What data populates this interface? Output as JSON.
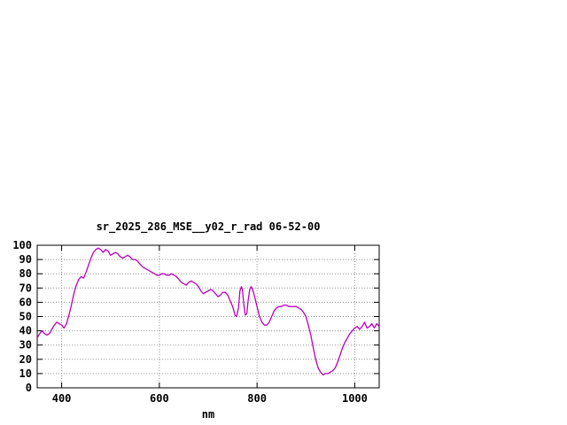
{
  "chart_data": {
    "type": "line",
    "title": "sr_2025_286_MSE__y02_r_rad 06-52-00",
    "xlabel": "nm",
    "ylabel": "",
    "xlim": [
      350,
      1050
    ],
    "ylim": [
      0,
      100
    ],
    "xticks": [
      400,
      600,
      800,
      1000
    ],
    "yticks": [
      0,
      10,
      20,
      30,
      40,
      50,
      60,
      70,
      80,
      90,
      100
    ],
    "grid": true,
    "legend": "none",
    "line_color": "#bb00bb",
    "background_color": "#ffffff",
    "series": [
      {
        "name": "sr_2025_286_MSE__y02_r_rad",
        "points": [
          [
            350,
            35
          ],
          [
            355,
            38
          ],
          [
            360,
            40
          ],
          [
            365,
            38
          ],
          [
            370,
            37
          ],
          [
            375,
            38
          ],
          [
            380,
            41
          ],
          [
            385,
            44
          ],
          [
            390,
            46
          ],
          [
            395,
            45
          ],
          [
            400,
            44
          ],
          [
            405,
            42
          ],
          [
            410,
            45
          ],
          [
            415,
            51
          ],
          [
            420,
            58
          ],
          [
            425,
            66
          ],
          [
            430,
            72
          ],
          [
            435,
            76
          ],
          [
            440,
            78
          ],
          [
            445,
            77
          ],
          [
            450,
            81
          ],
          [
            455,
            86
          ],
          [
            460,
            91
          ],
          [
            465,
            95
          ],
          [
            470,
            97
          ],
          [
            475,
            98
          ],
          [
            480,
            97
          ],
          [
            485,
            95
          ],
          [
            490,
            97
          ],
          [
            495,
            96
          ],
          [
            500,
            93
          ],
          [
            505,
            94
          ],
          [
            510,
            95
          ],
          [
            515,
            94
          ],
          [
            520,
            92
          ],
          [
            525,
            91
          ],
          [
            530,
            92
          ],
          [
            535,
            93
          ],
          [
            540,
            92
          ],
          [
            545,
            90
          ],
          [
            550,
            90
          ],
          [
            555,
            89
          ],
          [
            560,
            87
          ],
          [
            565,
            85
          ],
          [
            570,
            84
          ],
          [
            575,
            83
          ],
          [
            580,
            82
          ],
          [
            585,
            81
          ],
          [
            590,
            80
          ],
          [
            595,
            79
          ],
          [
            600,
            79
          ],
          [
            605,
            80
          ],
          [
            610,
            80
          ],
          [
            615,
            79
          ],
          [
            620,
            79
          ],
          [
            625,
            80
          ],
          [
            630,
            79
          ],
          [
            635,
            78
          ],
          [
            640,
            76
          ],
          [
            645,
            74
          ],
          [
            650,
            73
          ],
          [
            655,
            72
          ],
          [
            660,
            74
          ],
          [
            665,
            75
          ],
          [
            670,
            74
          ],
          [
            675,
            73
          ],
          [
            680,
            71
          ],
          [
            685,
            68
          ],
          [
            690,
            66
          ],
          [
            695,
            67
          ],
          [
            700,
            68
          ],
          [
            705,
            69
          ],
          [
            710,
            68
          ],
          [
            715,
            66
          ],
          [
            720,
            64
          ],
          [
            725,
            65
          ],
          [
            730,
            67
          ],
          [
            735,
            67
          ],
          [
            740,
            65
          ],
          [
            745,
            61
          ],
          [
            750,
            57
          ],
          [
            755,
            51
          ],
          [
            758,
            50
          ],
          [
            762,
            56
          ],
          [
            765,
            68
          ],
          [
            768,
            71
          ],
          [
            770,
            69
          ],
          [
            773,
            58
          ],
          [
            776,
            51
          ],
          [
            779,
            52
          ],
          [
            782,
            62
          ],
          [
            785,
            69
          ],
          [
            788,
            71
          ],
          [
            791,
            69
          ],
          [
            795,
            64
          ],
          [
            800,
            57
          ],
          [
            805,
            50
          ],
          [
            810,
            46
          ],
          [
            815,
            44
          ],
          [
            820,
            44
          ],
          [
            825,
            46
          ],
          [
            830,
            50
          ],
          [
            835,
            54
          ],
          [
            840,
            56
          ],
          [
            845,
            57
          ],
          [
            850,
            57
          ],
          [
            855,
            58
          ],
          [
            860,
            58
          ],
          [
            865,
            57
          ],
          [
            870,
            57
          ],
          [
            875,
            57
          ],
          [
            880,
            57
          ],
          [
            885,
            56
          ],
          [
            890,
            55
          ],
          [
            895,
            53
          ],
          [
            900,
            50
          ],
          [
            905,
            44
          ],
          [
            910,
            37
          ],
          [
            915,
            28
          ],
          [
            920,
            20
          ],
          [
            925,
            14
          ],
          [
            930,
            11
          ],
          [
            935,
            9
          ],
          [
            940,
            10
          ],
          [
            945,
            10
          ],
          [
            950,
            11
          ],
          [
            955,
            12
          ],
          [
            960,
            14
          ],
          [
            965,
            18
          ],
          [
            970,
            23
          ],
          [
            975,
            28
          ],
          [
            980,
            32
          ],
          [
            985,
            35
          ],
          [
            990,
            38
          ],
          [
            995,
            40
          ],
          [
            1000,
            42
          ],
          [
            1005,
            43
          ],
          [
            1010,
            41
          ],
          [
            1015,
            43
          ],
          [
            1020,
            46
          ],
          [
            1025,
            42
          ],
          [
            1030,
            43
          ],
          [
            1035,
            45
          ],
          [
            1040,
            42
          ],
          [
            1045,
            45
          ],
          [
            1050,
            43
          ]
        ]
      }
    ]
  }
}
